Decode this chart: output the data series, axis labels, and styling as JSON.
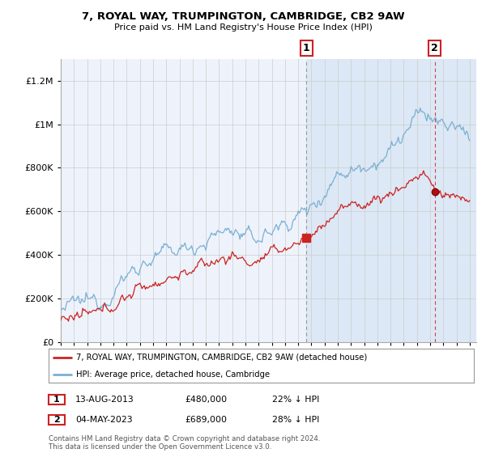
{
  "title": "7, ROYAL WAY, TRUMPINGTON, CAMBRIDGE, CB2 9AW",
  "subtitle": "Price paid vs. HM Land Registry's House Price Index (HPI)",
  "ylabel_ticks": [
    "£0",
    "£200K",
    "£400K",
    "£600K",
    "£800K",
    "£1M",
    "£1.2M"
  ],
  "ytick_values": [
    0,
    200000,
    400000,
    600000,
    800000,
    1000000,
    1200000
  ],
  "ylim": [
    0,
    1300000
  ],
  "xlim_start": 1995.0,
  "xlim_end": 2026.5,
  "sale1_date": 2013.617,
  "sale1_price": 480000,
  "sale1_label": "13-AUG-2013",
  "sale1_pct": "22% ↓ HPI",
  "sale2_date": 2023.342,
  "sale2_price": 689000,
  "sale2_label": "04-MAY-2023",
  "sale2_pct": "28% ↓ HPI",
  "hpi_color": "#7ab0d4",
  "price_color": "#cc2222",
  "vline1_color": "#999999",
  "vline2_color": "#cc4444",
  "grid_color": "#cccccc",
  "bg_color": "#eef3fb",
  "shade_color": "#dce8f5",
  "legend_label_price": "7, ROYAL WAY, TRUMPINGTON, CAMBRIDGE, CB2 9AW (detached house)",
  "legend_label_hpi": "HPI: Average price, detached house, Cambridge",
  "footer": "Contains HM Land Registry data © Crown copyright and database right 2024.\nThis data is licensed under the Open Government Licence v3.0.",
  "annotation_box_color": "#cc2222"
}
